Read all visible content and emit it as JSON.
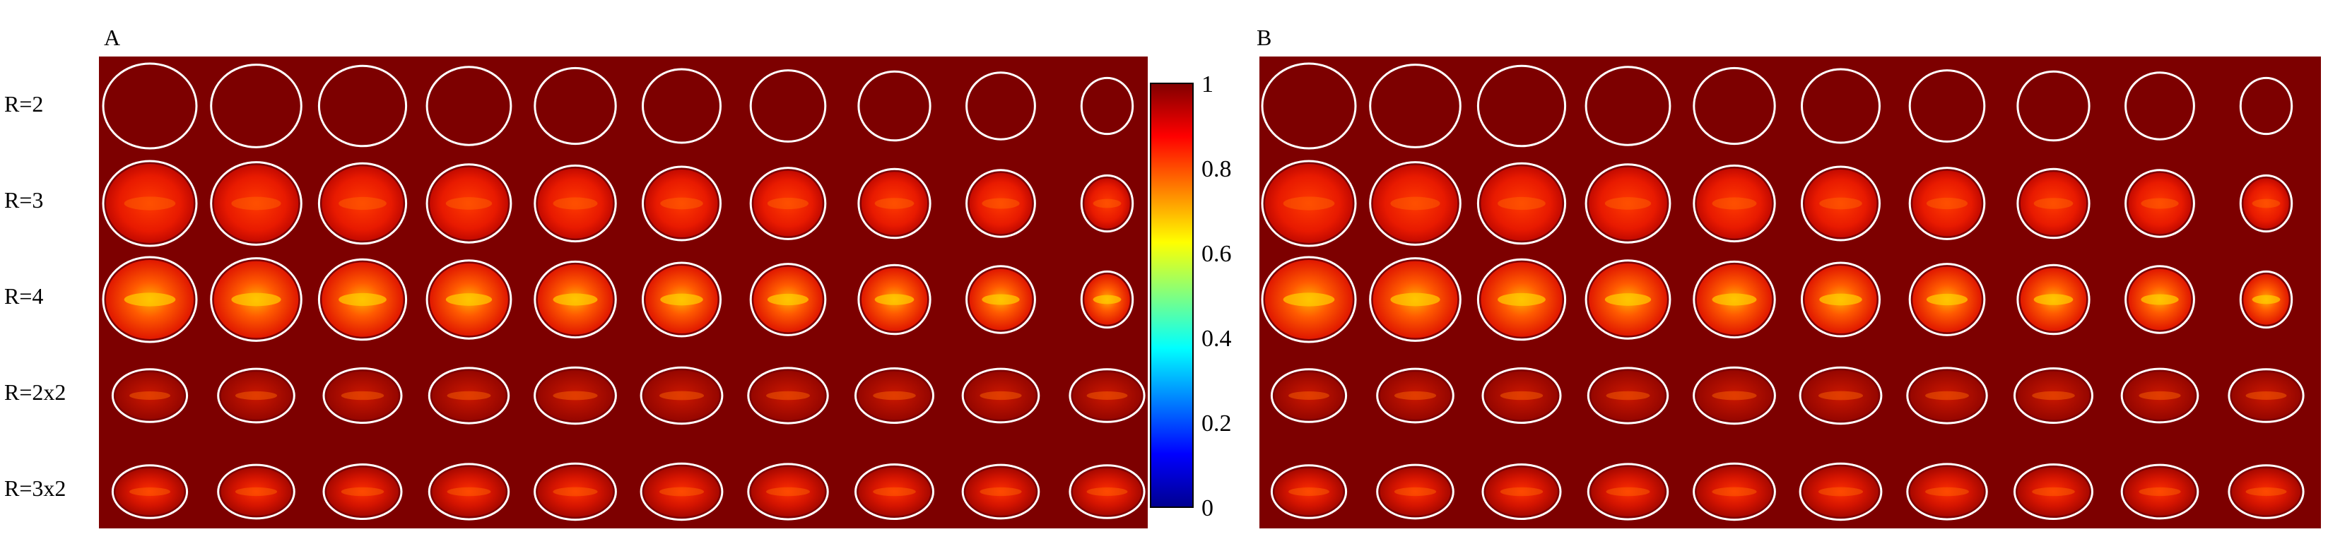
{
  "panels": [
    {
      "label": "A"
    },
    {
      "label": "B"
    }
  ],
  "row_labels": [
    "R=2",
    "R=3",
    "R=4",
    "R=2x2",
    "R=3x2"
  ],
  "colorbar": {
    "ticks": [
      "1",
      "0.8",
      "0.6",
      "0.4",
      "0.2",
      "0"
    ],
    "colormap": "jet",
    "range": [
      0,
      1
    ]
  },
  "colors": {
    "background_dark_red": "#7d0000",
    "outline": "#ffffff"
  }
}
